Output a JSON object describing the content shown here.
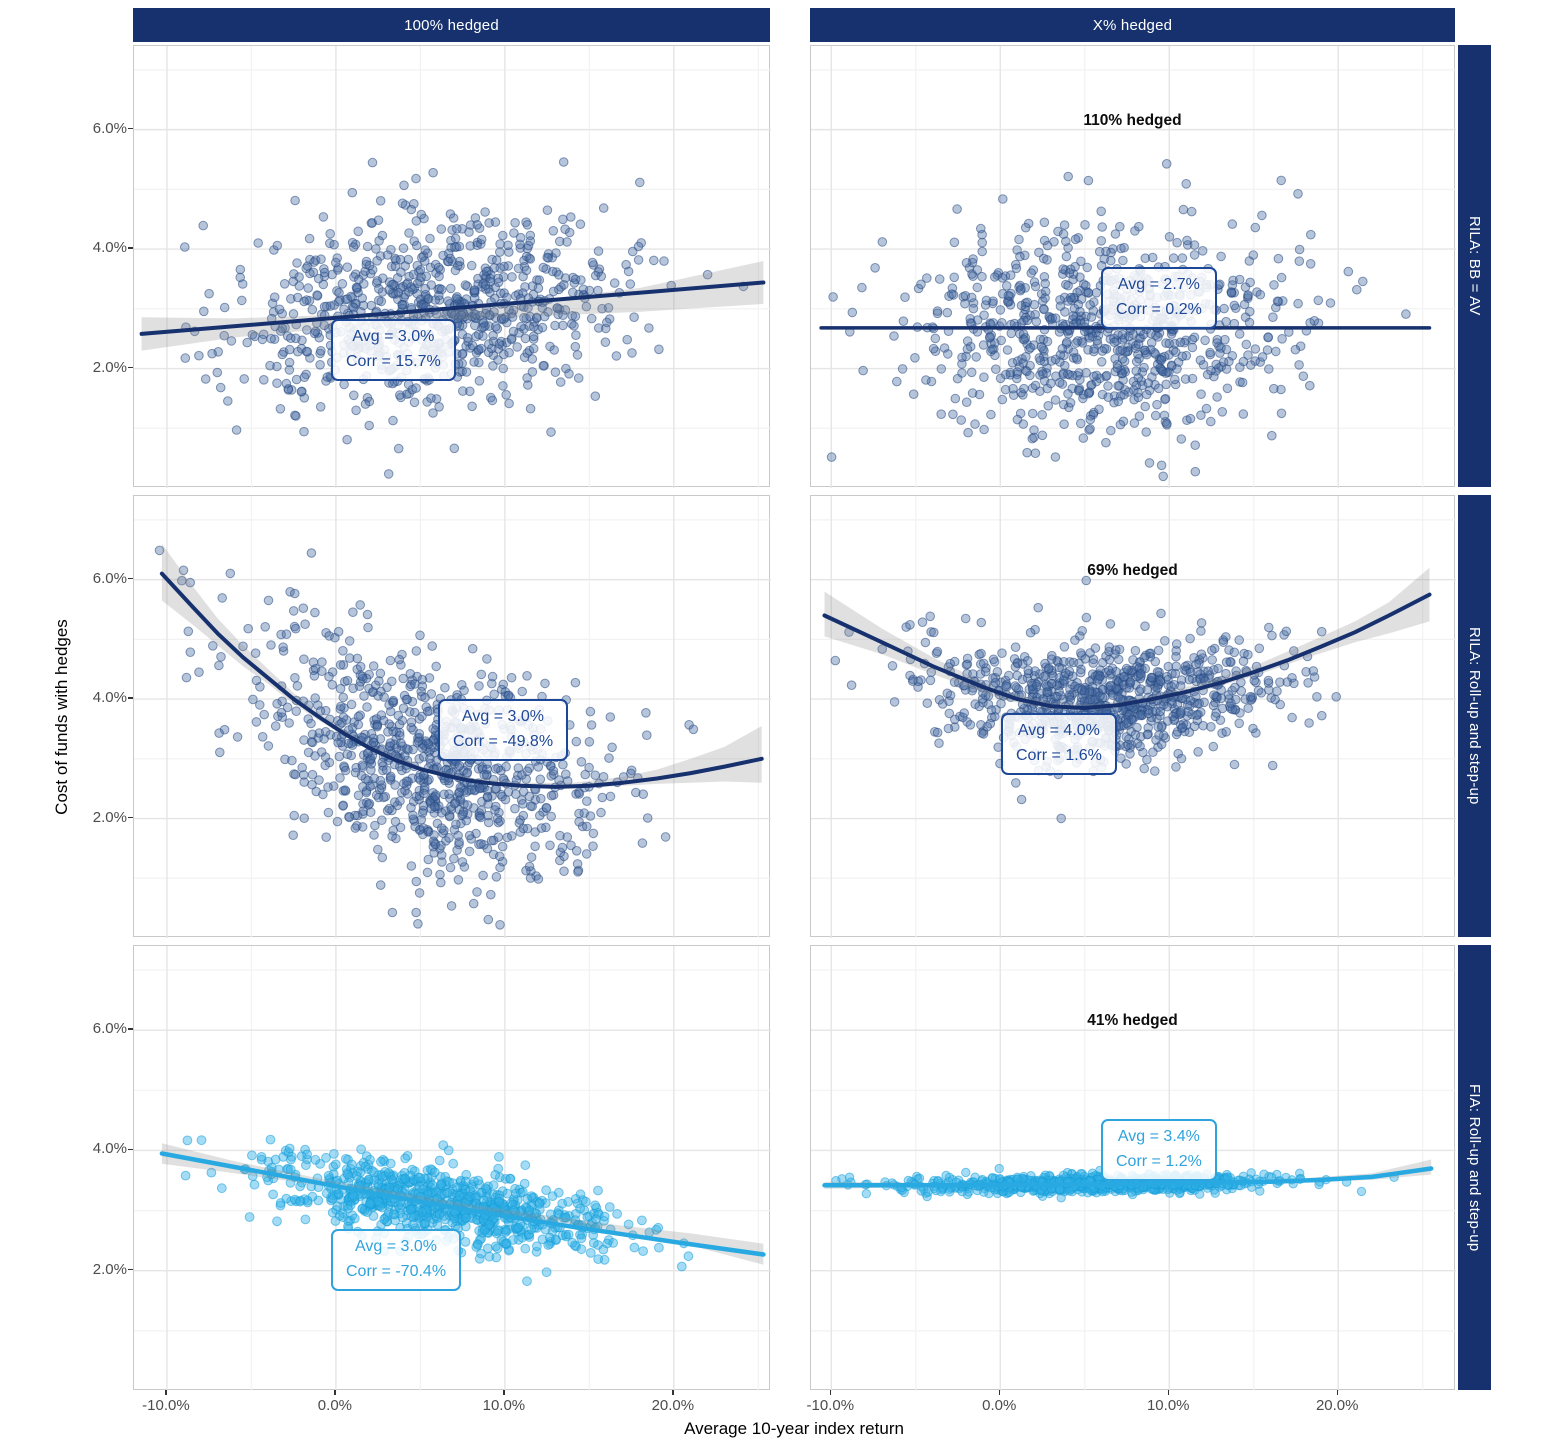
{
  "chart_data": {
    "type": "scatter",
    "title": "",
    "facet_columns": [
      "100% hedged",
      "X% hedged"
    ],
    "facet_rows": [
      "RILA: BB = AV",
      "RILA: Roll-up and step-up",
      "FIA: Roll-up and step-up"
    ],
    "axes": {
      "x_title": "Average 10-year index return",
      "y_title": "Cost of funds with hedges",
      "x_ticks": [
        {
          "v": -10,
          "label": "-10.0%"
        },
        {
          "v": 0,
          "label": "0.0%"
        },
        {
          "v": 10,
          "label": "10.0%"
        },
        {
          "v": 20,
          "label": "20.0%"
        }
      ],
      "y_ticks": [
        {
          "v": 6,
          "label": "6.0%"
        },
        {
          "v": 4,
          "label": "4.0%"
        },
        {
          "v": 2,
          "label": "2.0%"
        }
      ],
      "x_minor": [
        -5,
        5,
        15,
        25
      ],
      "y_minor": [
        1,
        3,
        5,
        7
      ],
      "x_domain_pct": [
        -12,
        27
      ],
      "y_domain_pct": [
        0,
        7.4
      ],
      "grid": true
    },
    "colors": {
      "navy": "#16316e",
      "light_blue": "#29a9e1",
      "ribbon_gray": "#8f8f8f",
      "hedge_text": "#0d0d0d",
      "tick_text": "#4c4c4c"
    },
    "panels": [
      {
        "row": 0,
        "col": 0,
        "facet_column": "100% hedged",
        "facet_row": "RILA: BB = AV",
        "annotation": {
          "avg": "Avg = 3.0%",
          "corr": "Corr = 15.7%"
        },
        "avg_value_pct": 3.0,
        "corr_value_pct": 15.7,
        "series_color": "#16316e",
        "point_fill": "#4b6ea6",
        "point_stroke": "#27497f",
        "point_opacity": 0.4,
        "point_r": 4.3,
        "line_width": 4,
        "box_color": "#1d4797",
        "trend": [
          [
            -11.5,
            2.58
          ],
          [
            25.3,
            3.44
          ]
        ],
        "ribbon": [
          [
            -11.5,
            2.3,
            2.86
          ],
          [
            -6,
            2.52,
            2.84
          ],
          [
            0,
            2.68,
            2.9
          ],
          [
            6,
            2.8,
            3.0
          ],
          [
            12,
            2.88,
            3.14
          ],
          [
            18,
            2.95,
            3.35
          ],
          [
            25.3,
            3.08,
            3.8
          ]
        ],
        "cloud": {
          "n": 850,
          "x_mean": 6,
          "x_sd": 5.6,
          "x_min": -10.8,
          "x_max": 25.4,
          "y_sd": 0.78,
          "seed": 101,
          "flatten": 0,
          "flat_y": 3.0
        }
      },
      {
        "row": 0,
        "col": 1,
        "facet_column": "X% hedged",
        "facet_row": "RILA: BB = AV",
        "hedge_label": "110% hedged",
        "annotation": {
          "avg": "Avg = 2.7%",
          "corr": "Corr = 0.2%"
        },
        "avg_value_pct": 2.7,
        "corr_value_pct": 0.2,
        "series_color": "#16316e",
        "point_fill": "#4b6ea6",
        "point_stroke": "#27497f",
        "point_opacity": 0.4,
        "point_r": 4.3,
        "line_width": 3.5,
        "box_color": "#1d4797",
        "trend": [
          [
            -10.6,
            2.68
          ],
          [
            25.4,
            2.68
          ]
        ],
        "ribbon": null,
        "cloud": {
          "n": 850,
          "x_mean": 6,
          "x_sd": 5.4,
          "x_min": -10.9,
          "x_max": 25.4,
          "y_sd": 0.82,
          "seed": 202,
          "flatten": 0,
          "flat_y": 2.7
        }
      },
      {
        "row": 1,
        "col": 0,
        "facet_column": "100% hedged",
        "facet_row": "RILA: Roll-up and step-up",
        "annotation": {
          "avg": "Avg = 3.0%",
          "corr": "Corr = -49.8%"
        },
        "avg_value_pct": 3.0,
        "corr_value_pct": -49.8,
        "series_color": "#16316e",
        "point_fill": "#4b6ea6",
        "point_stroke": "#27497f",
        "point_opacity": 0.4,
        "point_r": 4.3,
        "line_width": 4,
        "box_color": "#1d4797",
        "trend": [
          [
            -10.3,
            6.1
          ],
          [
            -8.5,
            5.55
          ],
          [
            -7,
            5.1
          ],
          [
            -5.5,
            4.7
          ],
          [
            -4,
            4.35
          ],
          [
            -2.5,
            4.0
          ],
          [
            -1,
            3.7
          ],
          [
            0.5,
            3.42
          ],
          [
            2,
            3.18
          ],
          [
            3.5,
            2.98
          ],
          [
            5,
            2.83
          ],
          [
            6.5,
            2.72
          ],
          [
            8,
            2.63
          ],
          [
            9.5,
            2.58
          ],
          [
            11,
            2.55
          ],
          [
            13,
            2.53
          ],
          [
            15,
            2.55
          ],
          [
            17,
            2.6
          ],
          [
            19,
            2.67
          ],
          [
            21,
            2.76
          ],
          [
            23,
            2.87
          ],
          [
            25.2,
            3.0
          ]
        ],
        "ribbon": [
          [
            -10.3,
            5.65,
            6.6
          ],
          [
            -8.5,
            5.25,
            5.9
          ],
          [
            -7,
            4.9,
            5.35
          ],
          [
            -5.5,
            4.55,
            4.9
          ],
          [
            -4,
            4.25,
            4.5
          ],
          [
            -2.5,
            3.92,
            4.1
          ],
          [
            -1,
            3.64,
            3.78
          ],
          [
            0.5,
            3.38,
            3.48
          ],
          [
            2,
            3.14,
            3.23
          ],
          [
            5,
            2.8,
            2.88
          ],
          [
            8,
            2.6,
            2.68
          ],
          [
            11,
            2.52,
            2.6
          ],
          [
            14,
            2.5,
            2.6
          ],
          [
            17,
            2.55,
            2.7
          ],
          [
            19,
            2.58,
            2.82
          ],
          [
            21,
            2.6,
            3.0
          ],
          [
            23,
            2.62,
            3.2
          ],
          [
            25.2,
            2.6,
            3.55
          ]
        ],
        "cloud": {
          "n": 900,
          "x_mean": 5.5,
          "x_sd": 5.2,
          "x_min": -10.6,
          "x_max": 25.2,
          "y_sd": 0.88,
          "seed": 303,
          "flatten": 0.15,
          "flat_y": 2.9
        }
      },
      {
        "row": 1,
        "col": 1,
        "facet_column": "X% hedged",
        "facet_row": "RILA: Roll-up and step-up",
        "hedge_label": "69% hedged",
        "annotation": {
          "avg": "Avg = 4.0%",
          "corr": "Corr = 1.6%"
        },
        "avg_value_pct": 4.0,
        "corr_value_pct": 1.6,
        "series_color": "#16316e",
        "point_fill": "#4b6ea6",
        "point_stroke": "#27497f",
        "point_opacity": 0.4,
        "point_r": 4.3,
        "line_width": 4,
        "box_color": "#1d4797",
        "trend": [
          [
            -10.4,
            5.4
          ],
          [
            -7,
            4.95
          ],
          [
            -4,
            4.55
          ],
          [
            -1,
            4.2
          ],
          [
            1,
            4.0
          ],
          [
            3,
            3.88
          ],
          [
            5,
            3.85
          ],
          [
            7,
            3.9
          ],
          [
            9,
            4.0
          ],
          [
            11,
            4.12
          ],
          [
            13,
            4.27
          ],
          [
            15,
            4.45
          ],
          [
            17,
            4.65
          ],
          [
            19,
            4.88
          ],
          [
            21,
            5.12
          ],
          [
            23,
            5.4
          ],
          [
            25.4,
            5.75
          ]
        ],
        "ribbon": [
          [
            -10.4,
            5.05,
            5.8
          ],
          [
            -7,
            4.75,
            5.18
          ],
          [
            -4,
            4.42,
            4.7
          ],
          [
            0,
            4.0,
            4.14
          ],
          [
            3,
            3.82,
            3.94
          ],
          [
            6,
            3.82,
            3.92
          ],
          [
            9,
            3.95,
            4.06
          ],
          [
            12,
            4.14,
            4.28
          ],
          [
            15,
            4.38,
            4.55
          ],
          [
            18,
            4.68,
            4.92
          ],
          [
            21,
            4.95,
            5.3
          ],
          [
            23,
            5.1,
            5.62
          ],
          [
            25.4,
            5.3,
            6.2
          ]
        ],
        "cloud": {
          "n": 900,
          "x_mean": 6,
          "x_sd": 5.2,
          "x_min": -10.8,
          "x_max": 25.5,
          "y_sd": 0.5,
          "seed": 404,
          "flatten": 0.3,
          "flat_y": 3.95
        }
      },
      {
        "row": 2,
        "col": 0,
        "facet_column": "100% hedged",
        "facet_row": "FIA: Roll-up and step-up",
        "annotation": {
          "avg": "Avg = 3.0%",
          "corr": "Corr = -70.4%"
        },
        "avg_value_pct": 3.0,
        "corr_value_pct": -70.4,
        "series_color": "#29a9e1",
        "point_fill": "#33b1e6",
        "point_stroke": "#149cd8",
        "point_opacity": 0.45,
        "point_r": 4.4,
        "line_width": 4.5,
        "box_color": "#2fa3dd",
        "trend": [
          [
            -10.3,
            3.95
          ],
          [
            -4,
            3.62
          ],
          [
            2,
            3.3
          ],
          [
            8,
            3.0
          ],
          [
            14,
            2.73
          ],
          [
            20,
            2.48
          ],
          [
            25.3,
            2.27
          ]
        ],
        "ribbon": [
          [
            -10.3,
            3.78,
            4.12
          ],
          [
            -6,
            3.62,
            3.82
          ],
          [
            0,
            3.38,
            3.48
          ],
          [
            8,
            3.0,
            3.1
          ],
          [
            16,
            2.68,
            2.78
          ],
          [
            21,
            2.42,
            2.62
          ],
          [
            25.3,
            2.1,
            2.45
          ]
        ],
        "cloud": {
          "n": 850,
          "x_mean": 6,
          "x_sd": 5.3,
          "x_min": -10.7,
          "x_max": 25.4,
          "y_sd": 0.3,
          "seed": 505,
          "flatten": 0,
          "flat_y": 3.0
        }
      },
      {
        "row": 2,
        "col": 1,
        "facet_column": "X% hedged",
        "facet_row": "FIA: Roll-up and step-up",
        "hedge_label": "41% hedged",
        "annotation": {
          "avg": "Avg = 3.4%",
          "corr": "Corr = 1.2%"
        },
        "avg_value_pct": 3.4,
        "corr_value_pct": 1.2,
        "series_color": "#29a9e1",
        "point_fill": "#33b1e6",
        "point_stroke": "#149cd8",
        "point_opacity": 0.45,
        "point_r": 4.2,
        "line_width": 4.5,
        "box_color": "#2fa3dd",
        "trend": [
          [
            -10.4,
            3.42
          ],
          [
            -4,
            3.42
          ],
          [
            2,
            3.43
          ],
          [
            8,
            3.44
          ],
          [
            12,
            3.46
          ],
          [
            16,
            3.48
          ],
          [
            19,
            3.51
          ],
          [
            22,
            3.56
          ],
          [
            25.5,
            3.7
          ]
        ],
        "ribbon": [
          [
            -10.4,
            3.36,
            3.48
          ],
          [
            0,
            3.41,
            3.45
          ],
          [
            10,
            3.43,
            3.47
          ],
          [
            18,
            3.47,
            3.54
          ],
          [
            22,
            3.51,
            3.62
          ],
          [
            25.5,
            3.6,
            3.85
          ]
        ],
        "cloud": {
          "n": 850,
          "x_mean": 6,
          "x_sd": 5.4,
          "x_min": -10.6,
          "x_max": 25.6,
          "y_sd": 0.07,
          "seed": 606,
          "flatten": 0,
          "flat_y": 3.45
        }
      }
    ]
  }
}
